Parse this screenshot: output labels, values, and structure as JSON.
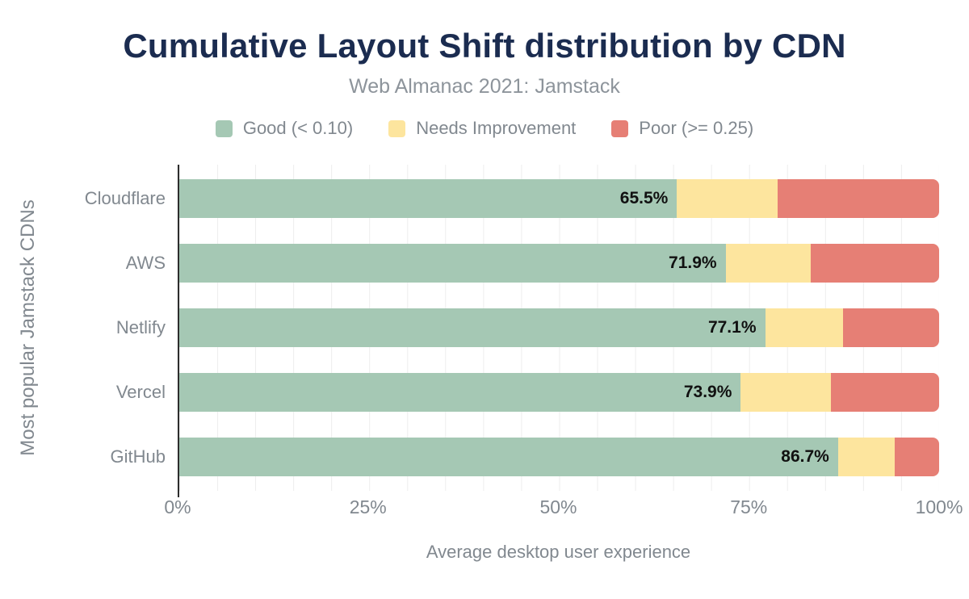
{
  "header": {
    "title": "Cumulative Layout Shift distribution by CDN",
    "subtitle": "Web Almanac 2021: Jamstack"
  },
  "legend": [
    {
      "label": "Good (< 0.10)",
      "color": "#a5c8b4"
    },
    {
      "label": "Needs Improvement",
      "color": "#fde59e"
    },
    {
      "label": "Poor (>= 0.25)",
      "color": "#e67f75"
    }
  ],
  "chart_data": {
    "type": "bar",
    "orientation": "horizontal",
    "stacked": true,
    "title": "Cumulative Layout Shift distribution by CDN",
    "subtitle": "Web Almanac 2021: Jamstack",
    "categories": [
      "Cloudflare",
      "AWS",
      "Netlify",
      "Vercel",
      "GitHub"
    ],
    "series": [
      {
        "name": "Good (< 0.10)",
        "color": "#a5c8b4",
        "values": [
          65.5,
          71.9,
          77.1,
          73.9,
          86.7
        ]
      },
      {
        "name": "Needs Improvement",
        "color": "#fde59e",
        "values": [
          13.2,
          11.2,
          10.3,
          11.9,
          7.5
        ]
      },
      {
        "name": "Poor (>= 0.25)",
        "color": "#e67f75",
        "values": [
          21.3,
          16.9,
          12.6,
          14.2,
          5.8
        ]
      }
    ],
    "bar_labels": [
      "65.5%",
      "71.9%",
      "77.1%",
      "73.9%",
      "86.7%"
    ],
    "xlabel": "Average desktop user experience",
    "ylabel": "Most popular Jamstack CDNs",
    "x_ticks": [
      "0%",
      "25%",
      "50%",
      "75%",
      "100%"
    ],
    "xlim": [
      0,
      100
    ],
    "grid": "vertical minor gridlines every 5%",
    "legend_position": "top"
  },
  "colors": {
    "background": "#ffffff",
    "title_text": "#1b2c50",
    "axis_text": "#81888f",
    "value_label": "#111111",
    "axis_line": "#2d2d2d",
    "gridline": "#ededed"
  }
}
